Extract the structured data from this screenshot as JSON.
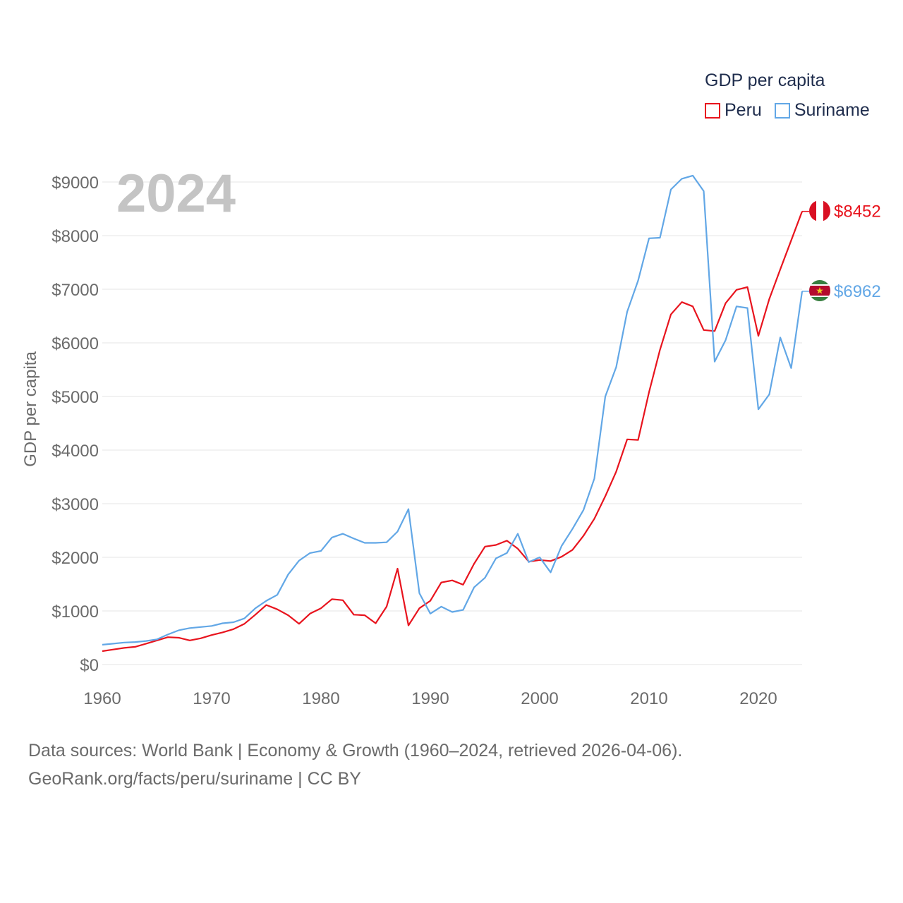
{
  "chart_data": {
    "type": "line",
    "big_year_label": "2024",
    "ylabel": "GDP per capita",
    "xlim": [
      1960,
      2024
    ],
    "ylim": [
      0,
      9000
    ],
    "y_ticks": [
      0,
      1000,
      2000,
      3000,
      4000,
      5000,
      6000,
      7000,
      8000,
      9000
    ],
    "y_tick_labels": [
      "$0",
      "$1000",
      "$2000",
      "$3000",
      "$4000",
      "$5000",
      "$6000",
      "$7000",
      "$8000",
      "$9000"
    ],
    "x_ticks": [
      1960,
      1970,
      1980,
      1990,
      2000,
      2010,
      2020
    ],
    "x_tick_labels": [
      "1960",
      "1970",
      "1980",
      "1990",
      "2000",
      "2010",
      "2020"
    ],
    "grid": true,
    "legend": {
      "title": "GDP per capita",
      "placement": "top-right",
      "entries": [
        "Peru",
        "Suriname"
      ]
    },
    "x": [
      1960,
      1961,
      1962,
      1963,
      1964,
      1965,
      1966,
      1967,
      1968,
      1969,
      1970,
      1971,
      1972,
      1973,
      1974,
      1975,
      1976,
      1977,
      1978,
      1979,
      1980,
      1981,
      1982,
      1983,
      1984,
      1985,
      1986,
      1987,
      1988,
      1989,
      1990,
      1991,
      1992,
      1993,
      1994,
      1995,
      1996,
      1997,
      1998,
      1999,
      2000,
      2001,
      2002,
      2003,
      2004,
      2005,
      2006,
      2007,
      2008,
      2009,
      2010,
      2011,
      2012,
      2013,
      2014,
      2015,
      2016,
      2017,
      2018,
      2019,
      2020,
      2021,
      2022,
      2023,
      2024
    ],
    "series": [
      {
        "name": "Peru",
        "color": "#e8141e",
        "end_label": "$8452",
        "values": [
          250,
          280,
          310,
          330,
          390,
          450,
          510,
          500,
          450,
          490,
          550,
          600,
          660,
          760,
          930,
          1110,
          1030,
          920,
          760,
          950,
          1050,
          1220,
          1200,
          930,
          920,
          770,
          1080,
          1790,
          730,
          1050,
          1190,
          1530,
          1570,
          1490,
          1880,
          2200,
          2230,
          2310,
          2160,
          1920,
          1950,
          1930,
          2010,
          2140,
          2400,
          2720,
          3140,
          3600,
          4200,
          4190,
          5080,
          5870,
          6530,
          6760,
          6680,
          6240,
          6220,
          6740,
          6990,
          7040,
          6130,
          6820,
          7370,
          7910,
          8452
        ]
      },
      {
        "name": "Suriname",
        "color": "#62a7e6",
        "end_label": "$6962",
        "values": [
          370,
          390,
          410,
          420,
          440,
          470,
          560,
          640,
          680,
          700,
          720,
          770,
          790,
          860,
          1050,
          1190,
          1300,
          1680,
          1940,
          2080,
          2120,
          2370,
          2440,
          2350,
          2270,
          2270,
          2280,
          2480,
          2900,
          1330,
          950,
          1080,
          980,
          1020,
          1440,
          1620,
          1980,
          2080,
          2440,
          1910,
          2000,
          1720,
          2210,
          2530,
          2880,
          3470,
          5000,
          5550,
          6580,
          7160,
          7950,
          7960,
          8860,
          9060,
          9120,
          8830,
          5650,
          6050,
          6680,
          6650,
          4760,
          5040,
          6100,
          5530,
          6962
        ]
      }
    ]
  },
  "source": {
    "line1": "Data sources: World Bank | Economy & Growth (1960–2024, retrieved 2026-04-06).",
    "line2": "GeoRank.org/facts/peru/suriname | CC BY"
  }
}
